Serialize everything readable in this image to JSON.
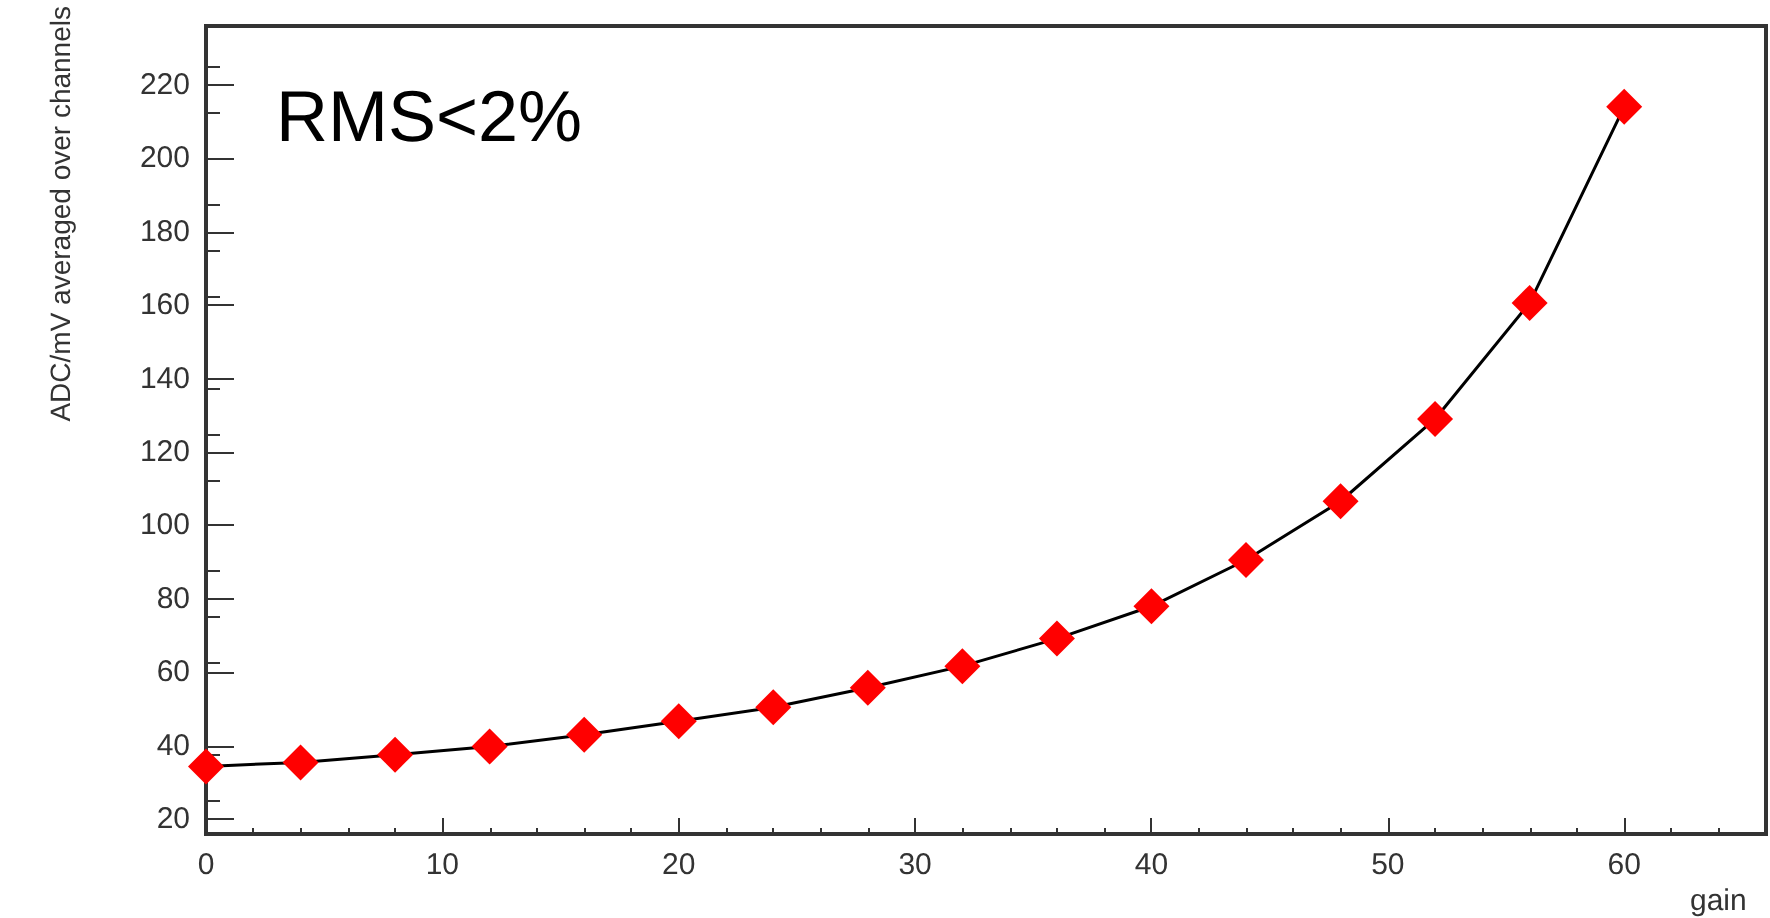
{
  "chart_data": {
    "type": "line",
    "xlabel": "gain",
    "ylabel": "ADC/mV averaged over channels",
    "annotations": [
      "RMS<2%"
    ],
    "x": [
      0,
      4,
      8,
      12,
      16,
      20,
      24,
      28,
      32,
      36,
      40,
      44,
      48,
      52,
      56,
      60
    ],
    "series": [
      {
        "color": "#ff0000",
        "values": [
          34.4,
          35.5,
          37.6,
          39.8,
          43,
          46.7,
          50.5,
          55.8,
          61.7,
          69.2,
          78,
          90.6,
          106.6,
          129,
          160.6,
          214
        ]
      }
    ],
    "xlim": [
      0,
      66
    ],
    "xticks": [
      0,
      10,
      20,
      30,
      40,
      50,
      60
    ],
    "ylim": [
      16,
      236
    ],
    "yticks": [
      20,
      40,
      60,
      80,
      100,
      120,
      140,
      160,
      180,
      200,
      220
    ],
    "grid": false,
    "marker": "diamond",
    "line_style": "solid"
  }
}
